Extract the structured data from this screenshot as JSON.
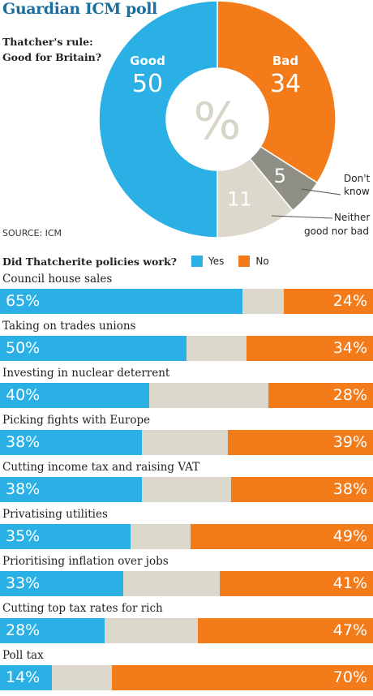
{
  "header": {
    "title": "Guardian ICM poll",
    "question_line1": "Thatcher's rule:",
    "question_line2": "Good for Britain?",
    "source": "SOURCE: ICM"
  },
  "colors": {
    "yes": "#2bb0e6",
    "no": "#f47b19",
    "neutral": "#dcd8cc",
    "dont_know": "#8f8f85",
    "title": "#1a6e9e"
  },
  "chart_data": [
    {
      "type": "pie",
      "title": "Thatcher's rule: Good for Britain?",
      "center_label": "%",
      "slices": [
        {
          "label": "Good",
          "value": 50,
          "color": "#2bb0e6"
        },
        {
          "label": "Bad",
          "value": 34,
          "color": "#f47b19"
        },
        {
          "label": "Don't know",
          "value": 5,
          "color": "#8f8f85"
        },
        {
          "label": "Neither good nor bad",
          "value": 11,
          "color": "#dcd8cc"
        }
      ],
      "callouts": {
        "dont_know_line1": "Don't",
        "dont_know_line2": "know",
        "neither_line1": "Neither",
        "neither_line2": "good nor bad"
      }
    },
    {
      "type": "bar",
      "stacked": true,
      "orientation": "horizontal",
      "title": "Did Thatcherite policies work?",
      "legend": [
        {
          "name": "Yes",
          "color": "#2bb0e6"
        },
        {
          "name": "No",
          "color": "#f47b19"
        }
      ],
      "categories": [
        "Council house sales",
        "Taking on trades unions",
        "Investing in nuclear deterrent",
        "Picking fights with Europe",
        "Cutting income tax and raising VAT",
        "Privatising utilities",
        "Prioritising inflation over jobs",
        "Cutting top tax rates for rich",
        "Poll tax"
      ],
      "series": [
        {
          "name": "Yes",
          "values": [
            65,
            50,
            40,
            38,
            38,
            35,
            33,
            28,
            14
          ]
        },
        {
          "name": "No",
          "values": [
            24,
            34,
            28,
            39,
            38,
            49,
            41,
            47,
            70
          ]
        }
      ],
      "value_suffix": "%"
    }
  ]
}
